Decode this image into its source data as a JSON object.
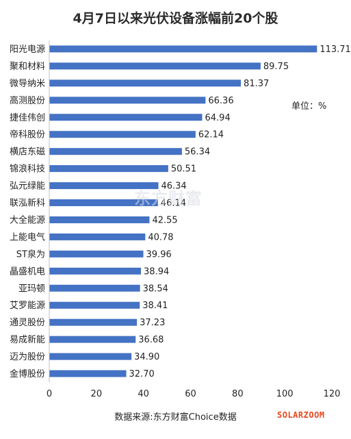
{
  "chart_data": {
    "type": "bar",
    "orientation": "horizontal",
    "title": "4月7日以来光伏设备涨幅前20个股",
    "unit_note": "单位：%",
    "source_note": "数据来源:东方财富Choice数据",
    "watermark": "东方财富",
    "brand_logo": "SOLARZOOM",
    "categories": [
      "阳光电源",
      "聚和材料",
      "微导纳米",
      "高测股份",
      "捷佳伟创",
      "帝科股份",
      "横店东磁",
      "锦浪科技",
      "弘元绿能",
      "联泓新科",
      "大全能源",
      "上能电气",
      "ST泉为",
      "晶盛机电",
      "亚玛顿",
      "艾罗能源",
      "通灵股份",
      "易成新能",
      "迈为股份",
      "金博股份"
    ],
    "values": [
      113.71,
      89.75,
      81.37,
      66.36,
      64.94,
      62.14,
      56.34,
      50.51,
      46.34,
      46.14,
      42.55,
      40.78,
      39.96,
      38.94,
      38.54,
      38.41,
      37.23,
      36.68,
      34.9,
      32.7
    ],
    "value_labels": [
      "113.71",
      "89.75",
      "81.37",
      "66.36",
      "64.94",
      "62.14",
      "56.34",
      "50.51",
      "46.34",
      "46.14",
      "42.55",
      "40.78",
      "39.96",
      "38.94",
      "38.54",
      "38.41",
      "37.23",
      "36.68",
      "34.90",
      "32.70"
    ],
    "xlim": [
      0,
      120
    ],
    "xticks": [
      "0",
      "20",
      "40",
      "60",
      "80",
      "100",
      "120"
    ],
    "bar_color": "#4472c4",
    "grid": false
  }
}
